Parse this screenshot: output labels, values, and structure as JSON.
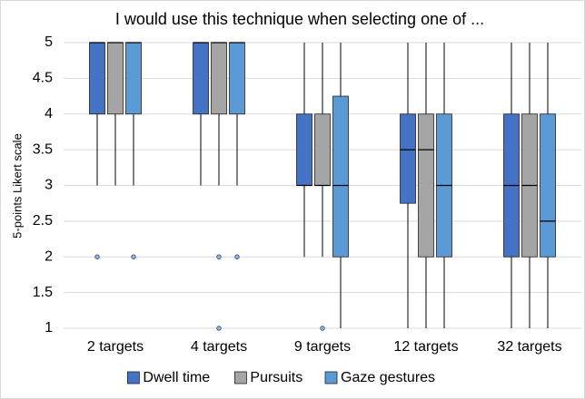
{
  "chart_data": {
    "type": "box",
    "title": "I would use this technique when selecting one of ...",
    "y_label": "5-points Likert scale",
    "categories": [
      "2 targets",
      "4 targets",
      "9 targets",
      "12 targets",
      "32 targets"
    ],
    "ylim": [
      1,
      5
    ],
    "yticks": [
      1,
      1.5,
      2,
      2.5,
      3,
      3.5,
      4,
      4.5,
      5
    ],
    "grid": true,
    "legend": "bottom",
    "series": [
      {
        "name": "Dwell time",
        "color": "#4472c4",
        "values": [
          {
            "min": 3,
            "q1": 4,
            "median": 5,
            "q3": 5,
            "max": 5,
            "outliers": [
              2
            ]
          },
          {
            "min": 3,
            "q1": 4,
            "median": 5,
            "q3": 5,
            "max": 5
          },
          {
            "min": 2,
            "q1": 3,
            "median": 3,
            "q3": 4,
            "max": 5
          },
          {
            "min": 1,
            "q1": 2.75,
            "median": 3.5,
            "q3": 4,
            "max": 5
          },
          {
            "min": 1,
            "q1": 2,
            "median": 3,
            "q3": 4,
            "max": 5
          }
        ]
      },
      {
        "name": "Pursuits",
        "color": "#a5a5a5",
        "values": [
          {
            "min": 3,
            "q1": 4,
            "median": 5,
            "q3": 5,
            "max": 5
          },
          {
            "min": 3,
            "q1": 4,
            "median": 5,
            "q3": 5,
            "max": 5,
            "outliers": [
              2,
              1
            ]
          },
          {
            "min": 2,
            "q1": 3,
            "median": 3,
            "q3": 4,
            "max": 5,
            "outliers": [
              1
            ]
          },
          {
            "min": 1,
            "q1": 2,
            "median": 3.5,
            "q3": 4,
            "max": 5
          },
          {
            "min": 1,
            "q1": 2,
            "median": 3,
            "q3": 4,
            "max": 5
          }
        ]
      },
      {
        "name": "Gaze gestures",
        "color": "#5b9bd5",
        "values": [
          {
            "min": 3,
            "q1": 4,
            "median": 5,
            "q3": 5,
            "max": 5,
            "outliers": [
              2
            ]
          },
          {
            "min": 3,
            "q1": 4,
            "median": 5,
            "q3": 5,
            "max": 5,
            "outliers": [
              2
            ]
          },
          {
            "min": 1,
            "q1": 2,
            "median": 3,
            "q3": 4.25,
            "max": 5
          },
          {
            "min": 1,
            "q1": 2,
            "median": 3,
            "q3": 4,
            "max": 5
          },
          {
            "min": 1,
            "q1": 2,
            "median": 2.5,
            "q3": 4,
            "max": 5
          }
        ]
      }
    ]
  }
}
